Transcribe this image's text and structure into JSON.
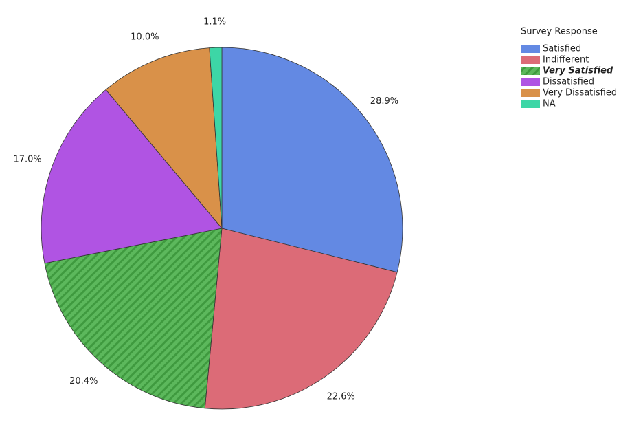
{
  "chart_data": {
    "type": "pie",
    "legend_title": "Survey Response",
    "categories": [
      "Satisfied",
      "Indifferent",
      "Very Satisfied",
      "Dissatisfied",
      "Very Dissatisfied",
      "NA"
    ],
    "values": [
      28.9,
      22.6,
      20.4,
      17.0,
      10.0,
      1.1
    ],
    "value_labels": [
      "28.9%",
      "22.6%",
      "20.4%",
      "17.0%",
      "10.0%",
      "1.1%"
    ],
    "colors": [
      "#6389e3",
      "#dc6b77",
      "#5cb85c",
      "#b054e3",
      "#d99149",
      "#3dd6a6"
    ],
    "hatched": [
      false,
      false,
      true,
      false,
      false,
      false
    ],
    "legend": "top-right"
  }
}
